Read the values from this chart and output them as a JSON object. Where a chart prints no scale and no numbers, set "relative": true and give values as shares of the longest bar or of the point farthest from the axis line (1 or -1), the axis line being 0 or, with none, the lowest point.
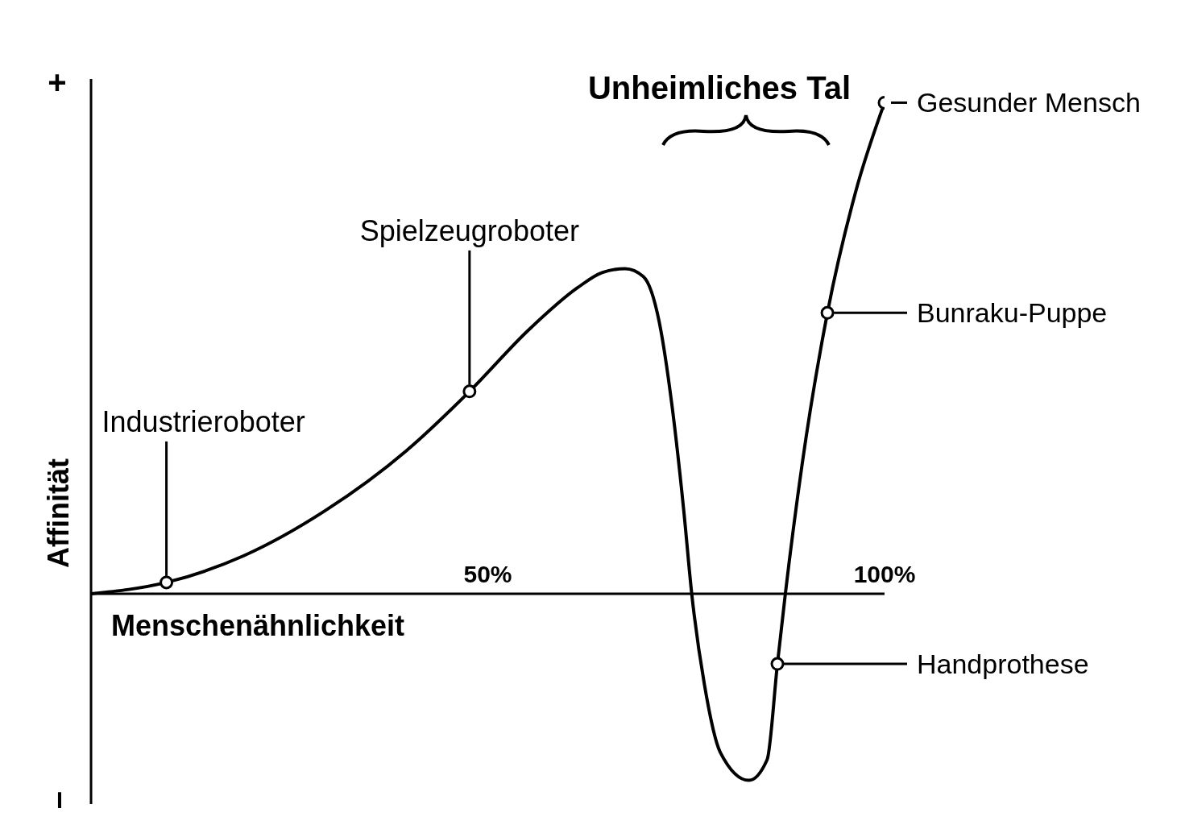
{
  "chart_data": {
    "type": "line",
    "relative": true,
    "xlabel": "Menschenähnlichkeit",
    "ylabel": "Affinität",
    "xlim": [
      0,
      100
    ],
    "xticks": [
      {
        "value": 50,
        "label": "50%"
      },
      {
        "value": 100,
        "label": "100%"
      }
    ],
    "grid": false,
    "legend": false,
    "series": [
      {
        "type": "line",
        "color": "#000000",
        "x": [
          0,
          9.5,
          19.2,
          29.5,
          39.8,
          47.7,
          55.2,
          61.3,
          64.4,
          67.3,
          69.6,
          71.6,
          73.2,
          74.7,
          75.7,
          77.3,
          79.3,
          82.9,
          85.2,
          86.5,
          87.5,
          89.6,
          92.8,
          96.3,
          100
        ],
        "values": [
          0,
          0.023,
          0.077,
          0.169,
          0.292,
          0.412,
          0.538,
          0.623,
          0.654,
          0.662,
          0.646,
          0.554,
          0.385,
          0.169,
          0,
          -0.185,
          -0.323,
          -0.38,
          -0.338,
          -0.143,
          0,
          0.262,
          0.572,
          0.815,
          1
        ]
      },
      {
        "type": "scatter",
        "color": "#000000",
        "marker": "circle",
        "x": [
          9.5,
          47.7,
          86.5,
          92.8,
          100
        ],
        "values": [
          0.023,
          0.412,
          -0.143,
          0.572,
          1
        ]
      }
    ],
    "annotations": [
      "Unheimliches Tal",
      "+",
      "–",
      {
        "text": "Industrieroboter",
        "x": 9.5,
        "y": 0.023
      },
      {
        "text": "Spielzeugroboter",
        "x": 47.7,
        "y": 0.412
      },
      "Handprothese",
      "Bunraku-Puppe",
      {
        "text": "Gesunder Mensch",
        "x": 100,
        "y": 1
      }
    ]
  }
}
